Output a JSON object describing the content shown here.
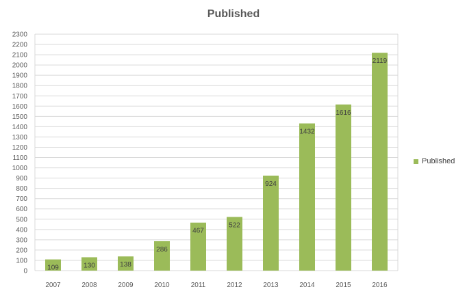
{
  "chart_data": {
    "type": "bar",
    "title": "Published",
    "categories": [
      "2007",
      "2008",
      "2009",
      "2010",
      "2011",
      "2012",
      "2013",
      "2014",
      "2015",
      "2016"
    ],
    "series": [
      {
        "name": "Published",
        "values": [
          109,
          130,
          138,
          286,
          467,
          522,
          924,
          1432,
          1616,
          2119
        ],
        "color": "#9BBB59"
      }
    ],
    "xlabel": "",
    "ylabel": "",
    "ylim": [
      0,
      2300
    ],
    "ytick_step": 100,
    "grid": true,
    "legend": "right",
    "data_labels": true
  }
}
